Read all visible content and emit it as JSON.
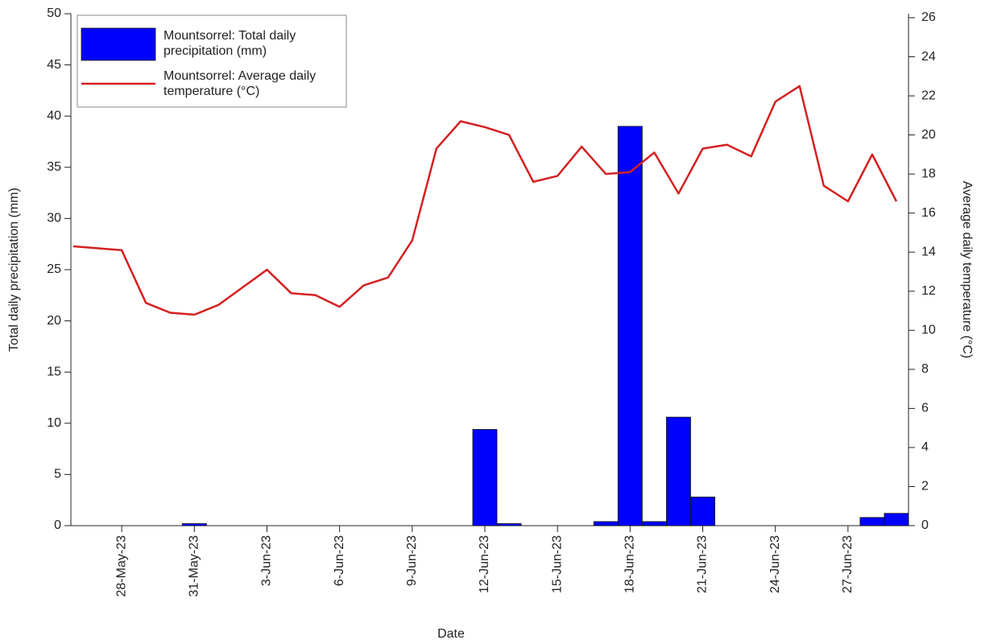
{
  "chart_data": {
    "type": "bar",
    "x_label": "Date",
    "y_label": "Total daily precipitation (mm)",
    "y2_label": "Average daily temperature (°C)",
    "x": [
      "2023-05-26",
      "2023-05-27",
      "2023-05-28",
      "2023-05-29",
      "2023-05-30",
      "2023-05-31",
      "2023-06-01",
      "2023-06-02",
      "2023-06-03",
      "2023-06-04",
      "2023-06-05",
      "2023-06-06",
      "2023-06-07",
      "2023-06-08",
      "2023-06-09",
      "2023-06-10",
      "2023-06-11",
      "2023-06-12",
      "2023-06-13",
      "2023-06-14",
      "2023-06-15",
      "2023-06-16",
      "2023-06-17",
      "2023-06-18",
      "2023-06-19",
      "2023-06-20",
      "2023-06-21",
      "2023-06-22",
      "2023-06-23",
      "2023-06-24",
      "2023-06-25",
      "2023-06-26",
      "2023-06-27",
      "2023-06-28",
      "2023-06-29"
    ],
    "xlim": [
      "2023-05-26",
      "2023-06-29"
    ],
    "xticks": [
      {
        "value": "2023-05-28",
        "label": "28-May-23"
      },
      {
        "value": "2023-05-31",
        "label": "31-May-23"
      },
      {
        "value": "2023-06-03",
        "label": "3-Jun-23"
      },
      {
        "value": "2023-06-06",
        "label": "6-Jun-23"
      },
      {
        "value": "2023-06-09",
        "label": "9-Jun-23"
      },
      {
        "value": "2023-06-12",
        "label": "12-Jun-23"
      },
      {
        "value": "2023-06-15",
        "label": "15-Jun-23"
      },
      {
        "value": "2023-06-18",
        "label": "18-Jun-23"
      },
      {
        "value": "2023-06-21",
        "label": "21-Jun-23"
      },
      {
        "value": "2023-06-24",
        "label": "24-Jun-23"
      },
      {
        "value": "2023-06-27",
        "label": "27-Jun-23"
      }
    ],
    "ylim": [
      0,
      50
    ],
    "yticks": [
      0,
      5,
      10,
      15,
      20,
      25,
      30,
      35,
      40,
      45,
      50
    ],
    "y2lim": [
      0,
      26
    ],
    "y2ticks": [
      0,
      2,
      4,
      6,
      8,
      10,
      12,
      14,
      16,
      18,
      20,
      22,
      24,
      26
    ],
    "legend": "upper-left",
    "series": [
      {
        "name": "Mountsorrel: Total daily precipitation (mm)",
        "type": "bar",
        "color": "#0000ff",
        "values": [
          0,
          0,
          0,
          0,
          0,
          0.2,
          0,
          0,
          0,
          0,
          0,
          0,
          0,
          0,
          0,
          0,
          0,
          9.4,
          0.2,
          0,
          0,
          0,
          0.4,
          39,
          0.4,
          10.6,
          2.8,
          0,
          0,
          0,
          0,
          0,
          0,
          0.8,
          1.2
        ]
      },
      {
        "name": "Mountsorrel: Average daily temperature (°C)",
        "type": "line",
        "color": "#d42020",
        "axis": "y2",
        "values": [
          14.3,
          14.2,
          14.1,
          11.4,
          10.9,
          10.8,
          11.3,
          12.2,
          13.1,
          11.9,
          11.8,
          11.2,
          12.3,
          12.7,
          14.6,
          19.3,
          20.7,
          20.4,
          20.0,
          17.6,
          17.9,
          19.4,
          18.0,
          18.1,
          19.1,
          17.0,
          19.3,
          19.5,
          18.9,
          21.7,
          22.5,
          17.4,
          16.6,
          19.0,
          16.6
        ]
      }
    ]
  }
}
